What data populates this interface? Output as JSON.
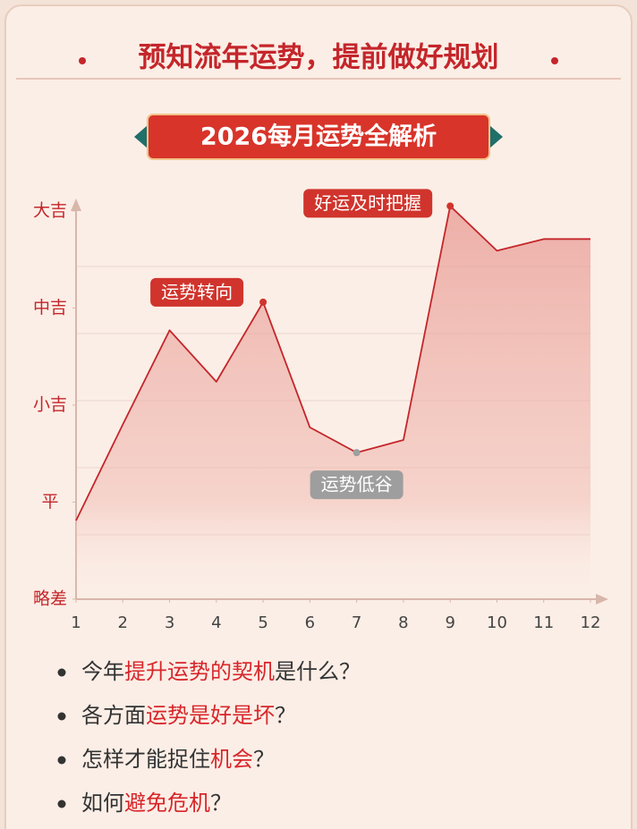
{
  "header": {
    "title": "预知流年运势，提前做好规划",
    "banner": "2026每月运势全解析"
  },
  "chart_data": {
    "type": "area",
    "x": [
      1,
      2,
      3,
      4,
      5,
      6,
      7,
      8,
      9,
      10,
      11,
      12
    ],
    "xlim": [
      1,
      12
    ],
    "xticks": [
      1,
      2,
      3,
      4,
      5,
      6,
      7,
      8,
      9,
      10,
      11,
      12
    ],
    "ylim": [
      0,
      4.1
    ],
    "yticks": [
      {
        "value": 0,
        "label": "略差"
      },
      {
        "value": 1,
        "label": "平"
      },
      {
        "value": 2,
        "label": "小吉"
      },
      {
        "value": 3,
        "label": "中吉"
      },
      {
        "value": 4,
        "label": "大吉"
      }
    ],
    "color": "#c4262b",
    "values": [
      0.81,
      1.8,
      2.77,
      2.24,
      3.06,
      1.77,
      1.51,
      1.64,
      4.05,
      3.59,
      3.71,
      3.71
    ],
    "annotations": [
      {
        "text": "运势转向",
        "x": 5,
        "color": "#d0342c"
      },
      {
        "text": "好运及时把握",
        "x": 9,
        "color": "#d0342c"
      },
      {
        "text": "运势低谷",
        "x": 7,
        "color": "#9e9e9e"
      }
    ]
  },
  "questions": [
    [
      {
        "text": "今年"
      },
      {
        "text": "提升运势的契机",
        "highlight": true
      },
      {
        "text": "是什么？"
      }
    ],
    [
      {
        "text": "各方面"
      },
      {
        "text": "运势是好是坏",
        "highlight": true
      },
      {
        "text": "？"
      }
    ],
    [
      {
        "text": "怎样才能捉住"
      },
      {
        "text": "机会",
        "highlight": true
      },
      {
        "text": "？"
      }
    ],
    [
      {
        "text": "如何"
      },
      {
        "text": "避免危机",
        "highlight": true
      },
      {
        "text": "？"
      }
    ]
  ]
}
